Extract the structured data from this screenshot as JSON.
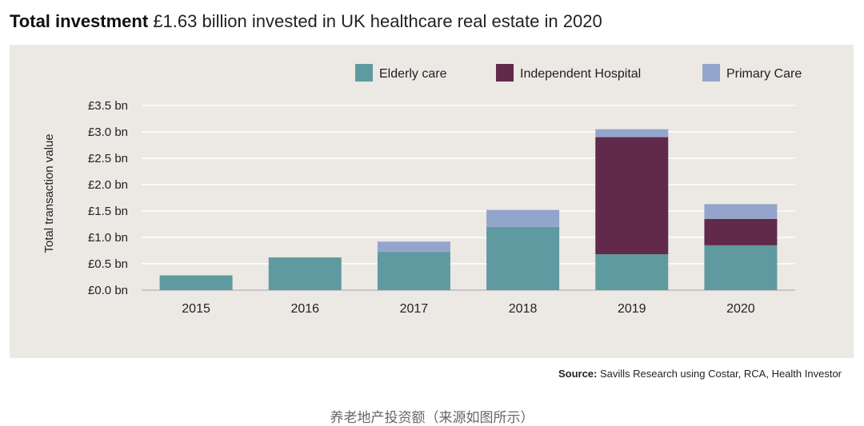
{
  "header": {
    "title_bold": "Total investment",
    "title_rest": "£1.63 billion invested in UK healthcare real estate in 2020"
  },
  "source": {
    "label": "Source:",
    "text": "Savills Research using Costar, RCA, Health Investor"
  },
  "caption": "养老地产投资额（来源如图所示）",
  "chart_data": {
    "type": "bar",
    "stacked": true,
    "title": "Total investment",
    "ylabel": "Total transaction value",
    "xlabel": "",
    "categories": [
      "2015",
      "2016",
      "2017",
      "2018",
      "2019",
      "2020"
    ],
    "ylim": [
      0,
      3.5
    ],
    "yticks": [
      0,
      0.5,
      1.0,
      1.5,
      2.0,
      2.5,
      3.0,
      3.5
    ],
    "ytick_labels": [
      "£0.0 bn",
      "£0.5 bn",
      "£1.0 bn",
      "£1.5 bn",
      "£2.0 bn",
      "£2.5 bn",
      "£3.0 bn",
      "£3.5 bn"
    ],
    "grid": true,
    "legend_position": "top-right",
    "series": [
      {
        "name": "Elderly care",
        "color": "#5f9aa0",
        "values": [
          0.28,
          0.62,
          0.72,
          1.2,
          0.68,
          0.85
        ]
      },
      {
        "name": "Independent Hospital",
        "color": "#612a4b",
        "values": [
          0,
          0,
          0,
          0,
          2.22,
          0.5
        ]
      },
      {
        "name": "Primary Care",
        "color": "#93a5cb",
        "values": [
          0,
          0,
          0.2,
          0.32,
          0.15,
          0.28
        ]
      }
    ]
  }
}
